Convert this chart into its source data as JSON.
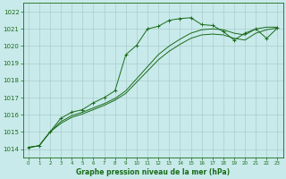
{
  "bg_color": "#c8eaea",
  "grid_color": "#aacccc",
  "line_color": "#1a6b1a",
  "title": "Graphe pression niveau de la mer (hPa)",
  "hours": [
    0,
    1,
    2,
    3,
    4,
    5,
    6,
    7,
    8,
    9,
    10,
    11,
    12,
    13,
    14,
    15,
    16,
    17,
    18,
    19,
    20,
    21,
    22,
    23
  ],
  "ylim": [
    1013.5,
    1022.5
  ],
  "yticks": [
    1014,
    1015,
    1016,
    1017,
    1018,
    1019,
    1020,
    1021,
    1022
  ],
  "line_main": [
    1014.1,
    1014.2,
    1015.0,
    1015.8,
    1016.15,
    1016.3,
    1016.7,
    1017.0,
    1017.4,
    1019.5,
    1020.05,
    1021.0,
    1021.15,
    1021.5,
    1021.6,
    1021.65,
    1021.25,
    1021.2,
    1020.85,
    1020.35,
    1020.75,
    1021.0,
    1020.45,
    1021.05
  ],
  "line_low1": [
    1014.1,
    1014.2,
    1015.0,
    1015.5,
    1015.85,
    1016.05,
    1016.3,
    1016.55,
    1016.85,
    1017.25,
    1017.9,
    1018.55,
    1019.2,
    1019.7,
    1020.1,
    1020.45,
    1020.65,
    1020.7,
    1020.65,
    1020.45,
    1020.35,
    1020.75,
    1020.95,
    1021.05
  ],
  "line_low2": [
    1014.1,
    1014.2,
    1015.0,
    1015.6,
    1015.95,
    1016.15,
    1016.4,
    1016.65,
    1016.95,
    1017.4,
    1018.1,
    1018.8,
    1019.5,
    1020.0,
    1020.4,
    1020.75,
    1020.95,
    1021.0,
    1020.95,
    1020.75,
    1020.65,
    1021.0,
    1021.1,
    1021.1
  ],
  "figsize": [
    3.2,
    2.0
  ],
  "dpi": 100
}
